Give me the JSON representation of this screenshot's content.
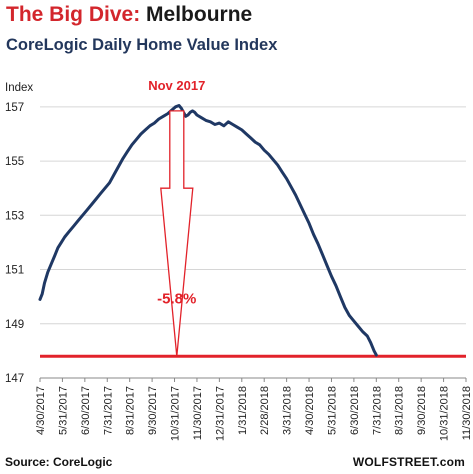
{
  "chart_data": {
    "type": "line",
    "title_part1": "The Big Dive",
    "title_sep": ":",
    "title_part2": "Melbourne",
    "subtitle": "CoreLogic Daily Home Value Index",
    "ylabel": "Index",
    "ylim": [
      147,
      157.4
    ],
    "yticks": [
      147,
      149,
      151,
      153,
      155,
      157
    ],
    "x_tick_labels": [
      "4/30/2017",
      "5/31/2017",
      "6/30/2017",
      "7/31/2017",
      "8/31/2017",
      "9/30/2017",
      "10/31/2017",
      "11/30/2017",
      "12/31/2017",
      "1/31/2018",
      "2/28/2018",
      "3/31/2018",
      "4/30/2018",
      "5/31/2018",
      "6/30/2018",
      "7/31/2018",
      "8/31/2018",
      "9/30/2018",
      "10/31/2018",
      "11/30/2018"
    ],
    "grid": "horizontal",
    "series": [
      {
        "color": "#1f3864",
        "points": [
          [
            0,
            149.9
          ],
          [
            0.1,
            150.1
          ],
          [
            0.2,
            150.5
          ],
          [
            0.35,
            150.9
          ],
          [
            0.5,
            151.2
          ],
          [
            0.65,
            151.5
          ],
          [
            0.8,
            151.8
          ],
          [
            0.95,
            152.0
          ],
          [
            1.1,
            152.2
          ],
          [
            1.3,
            152.4
          ],
          [
            1.5,
            152.6
          ],
          [
            1.7,
            152.8
          ],
          [
            1.9,
            153.0
          ],
          [
            2.1,
            153.2
          ],
          [
            2.3,
            153.4
          ],
          [
            2.5,
            153.6
          ],
          [
            2.7,
            153.8
          ],
          [
            2.9,
            154.0
          ],
          [
            3.1,
            154.2
          ],
          [
            3.3,
            154.5
          ],
          [
            3.5,
            154.8
          ],
          [
            3.7,
            155.1
          ],
          [
            3.9,
            155.35
          ],
          [
            4.1,
            155.6
          ],
          [
            4.3,
            155.8
          ],
          [
            4.5,
            156.0
          ],
          [
            4.7,
            156.15
          ],
          [
            4.9,
            156.3
          ],
          [
            5.1,
            156.4
          ],
          [
            5.3,
            156.55
          ],
          [
            5.5,
            156.65
          ],
          [
            5.7,
            156.75
          ],
          [
            5.9,
            156.9
          ],
          [
            6.05,
            157.0
          ],
          [
            6.2,
            157.05
          ],
          [
            6.3,
            156.95
          ],
          [
            6.4,
            156.8
          ],
          [
            6.5,
            156.65
          ],
          [
            6.6,
            156.7
          ],
          [
            6.7,
            156.8
          ],
          [
            6.8,
            156.85
          ],
          [
            6.9,
            156.8
          ],
          [
            7.0,
            156.7
          ],
          [
            7.2,
            156.6
          ],
          [
            7.4,
            156.5
          ],
          [
            7.6,
            156.45
          ],
          [
            7.8,
            156.35
          ],
          [
            8.0,
            156.4
          ],
          [
            8.2,
            156.3
          ],
          [
            8.4,
            156.45
          ],
          [
            8.6,
            156.35
          ],
          [
            8.8,
            156.25
          ],
          [
            9.0,
            156.15
          ],
          [
            9.2,
            156.0
          ],
          [
            9.4,
            155.85
          ],
          [
            9.6,
            155.7
          ],
          [
            9.8,
            155.6
          ],
          [
            10.0,
            155.4
          ],
          [
            10.2,
            155.25
          ],
          [
            10.4,
            155.05
          ],
          [
            10.6,
            154.85
          ],
          [
            10.8,
            154.6
          ],
          [
            11.0,
            154.35
          ],
          [
            11.2,
            154.05
          ],
          [
            11.4,
            153.75
          ],
          [
            11.6,
            153.4
          ],
          [
            11.8,
            153.05
          ],
          [
            12.0,
            152.7
          ],
          [
            12.2,
            152.3
          ],
          [
            12.4,
            151.95
          ],
          [
            12.6,
            151.55
          ],
          [
            12.8,
            151.15
          ],
          [
            13.0,
            150.75
          ],
          [
            13.2,
            150.4
          ],
          [
            13.4,
            150.0
          ],
          [
            13.6,
            149.6
          ],
          [
            13.8,
            149.3
          ],
          [
            14.0,
            149.1
          ],
          [
            14.2,
            148.9
          ],
          [
            14.4,
            148.7
          ],
          [
            14.6,
            148.55
          ],
          [
            14.75,
            148.3
          ],
          [
            14.9,
            148.0
          ],
          [
            15.0,
            147.85
          ]
        ]
      }
    ],
    "reference_line": {
      "value": 147.8,
      "color": "#e2222a"
    },
    "annotations": {
      "peak_label": "Nov 2017",
      "drop_label": "-5.8%",
      "arrow_top": 156.85,
      "arrow_bottom": 147.8,
      "arrow_at": 6.1,
      "color": "#e2222a"
    },
    "source": "Source: CoreLogic",
    "brand": "WOLFSTREET.com"
  }
}
